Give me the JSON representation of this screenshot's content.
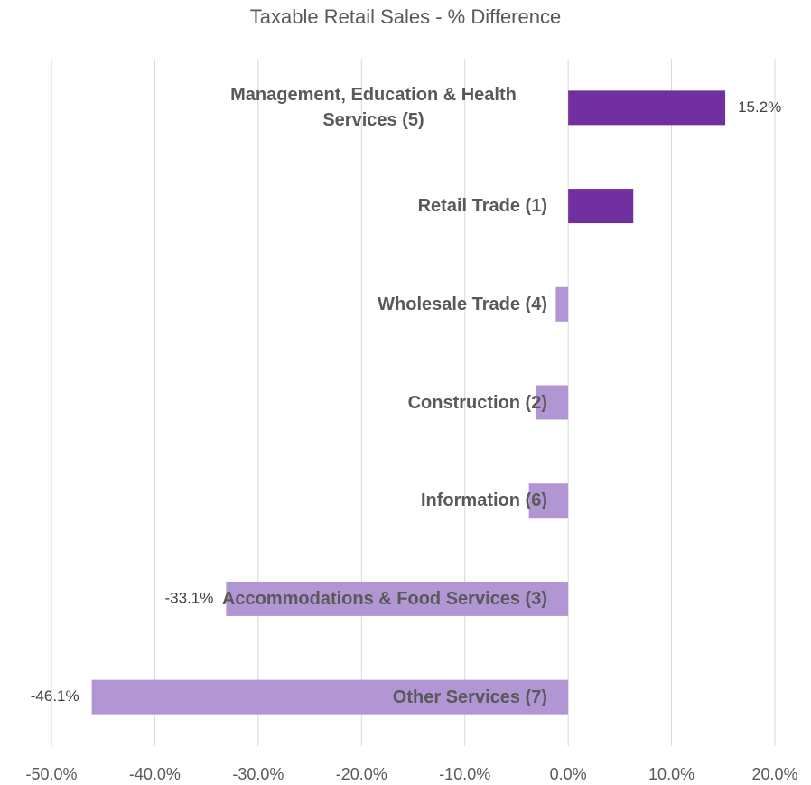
{
  "chart_data": {
    "type": "barh",
    "title": "Taxable Retail Sales - % Difference",
    "categories": [
      "Management, Education & Health Services (5)",
      "Retail Trade (1)",
      "Wholesale Trade (4)",
      "Construction (2)",
      "Information (6)",
      "Accommodations & Food Services (3)",
      "Other Services (7)"
    ],
    "values": [
      15.2,
      6.3,
      -1.2,
      -3.1,
      -3.8,
      -33.1,
      -46.1
    ],
    "value_labels": [
      "15.2%",
      null,
      null,
      null,
      null,
      "-33.1%",
      "-46.1%"
    ],
    "colors": [
      "#7030a0",
      "#7030a0",
      "#b196d3",
      "#b196d3",
      "#b196d3",
      "#b196d3",
      "#b196d3"
    ],
    "xlim": [
      -50,
      20
    ],
    "xticks": [
      {
        "value": -50,
        "label": "-50.0%"
      },
      {
        "value": -40,
        "label": "-40.0%"
      },
      {
        "value": -30,
        "label": "-30.0%"
      },
      {
        "value": -20,
        "label": "-20.0%"
      },
      {
        "value": -10,
        "label": "-10.0%"
      },
      {
        "value": 0,
        "label": "0.0%"
      },
      {
        "value": 10,
        "label": "10.0%"
      },
      {
        "value": 20,
        "label": "20.0%"
      }
    ],
    "grid": true
  }
}
